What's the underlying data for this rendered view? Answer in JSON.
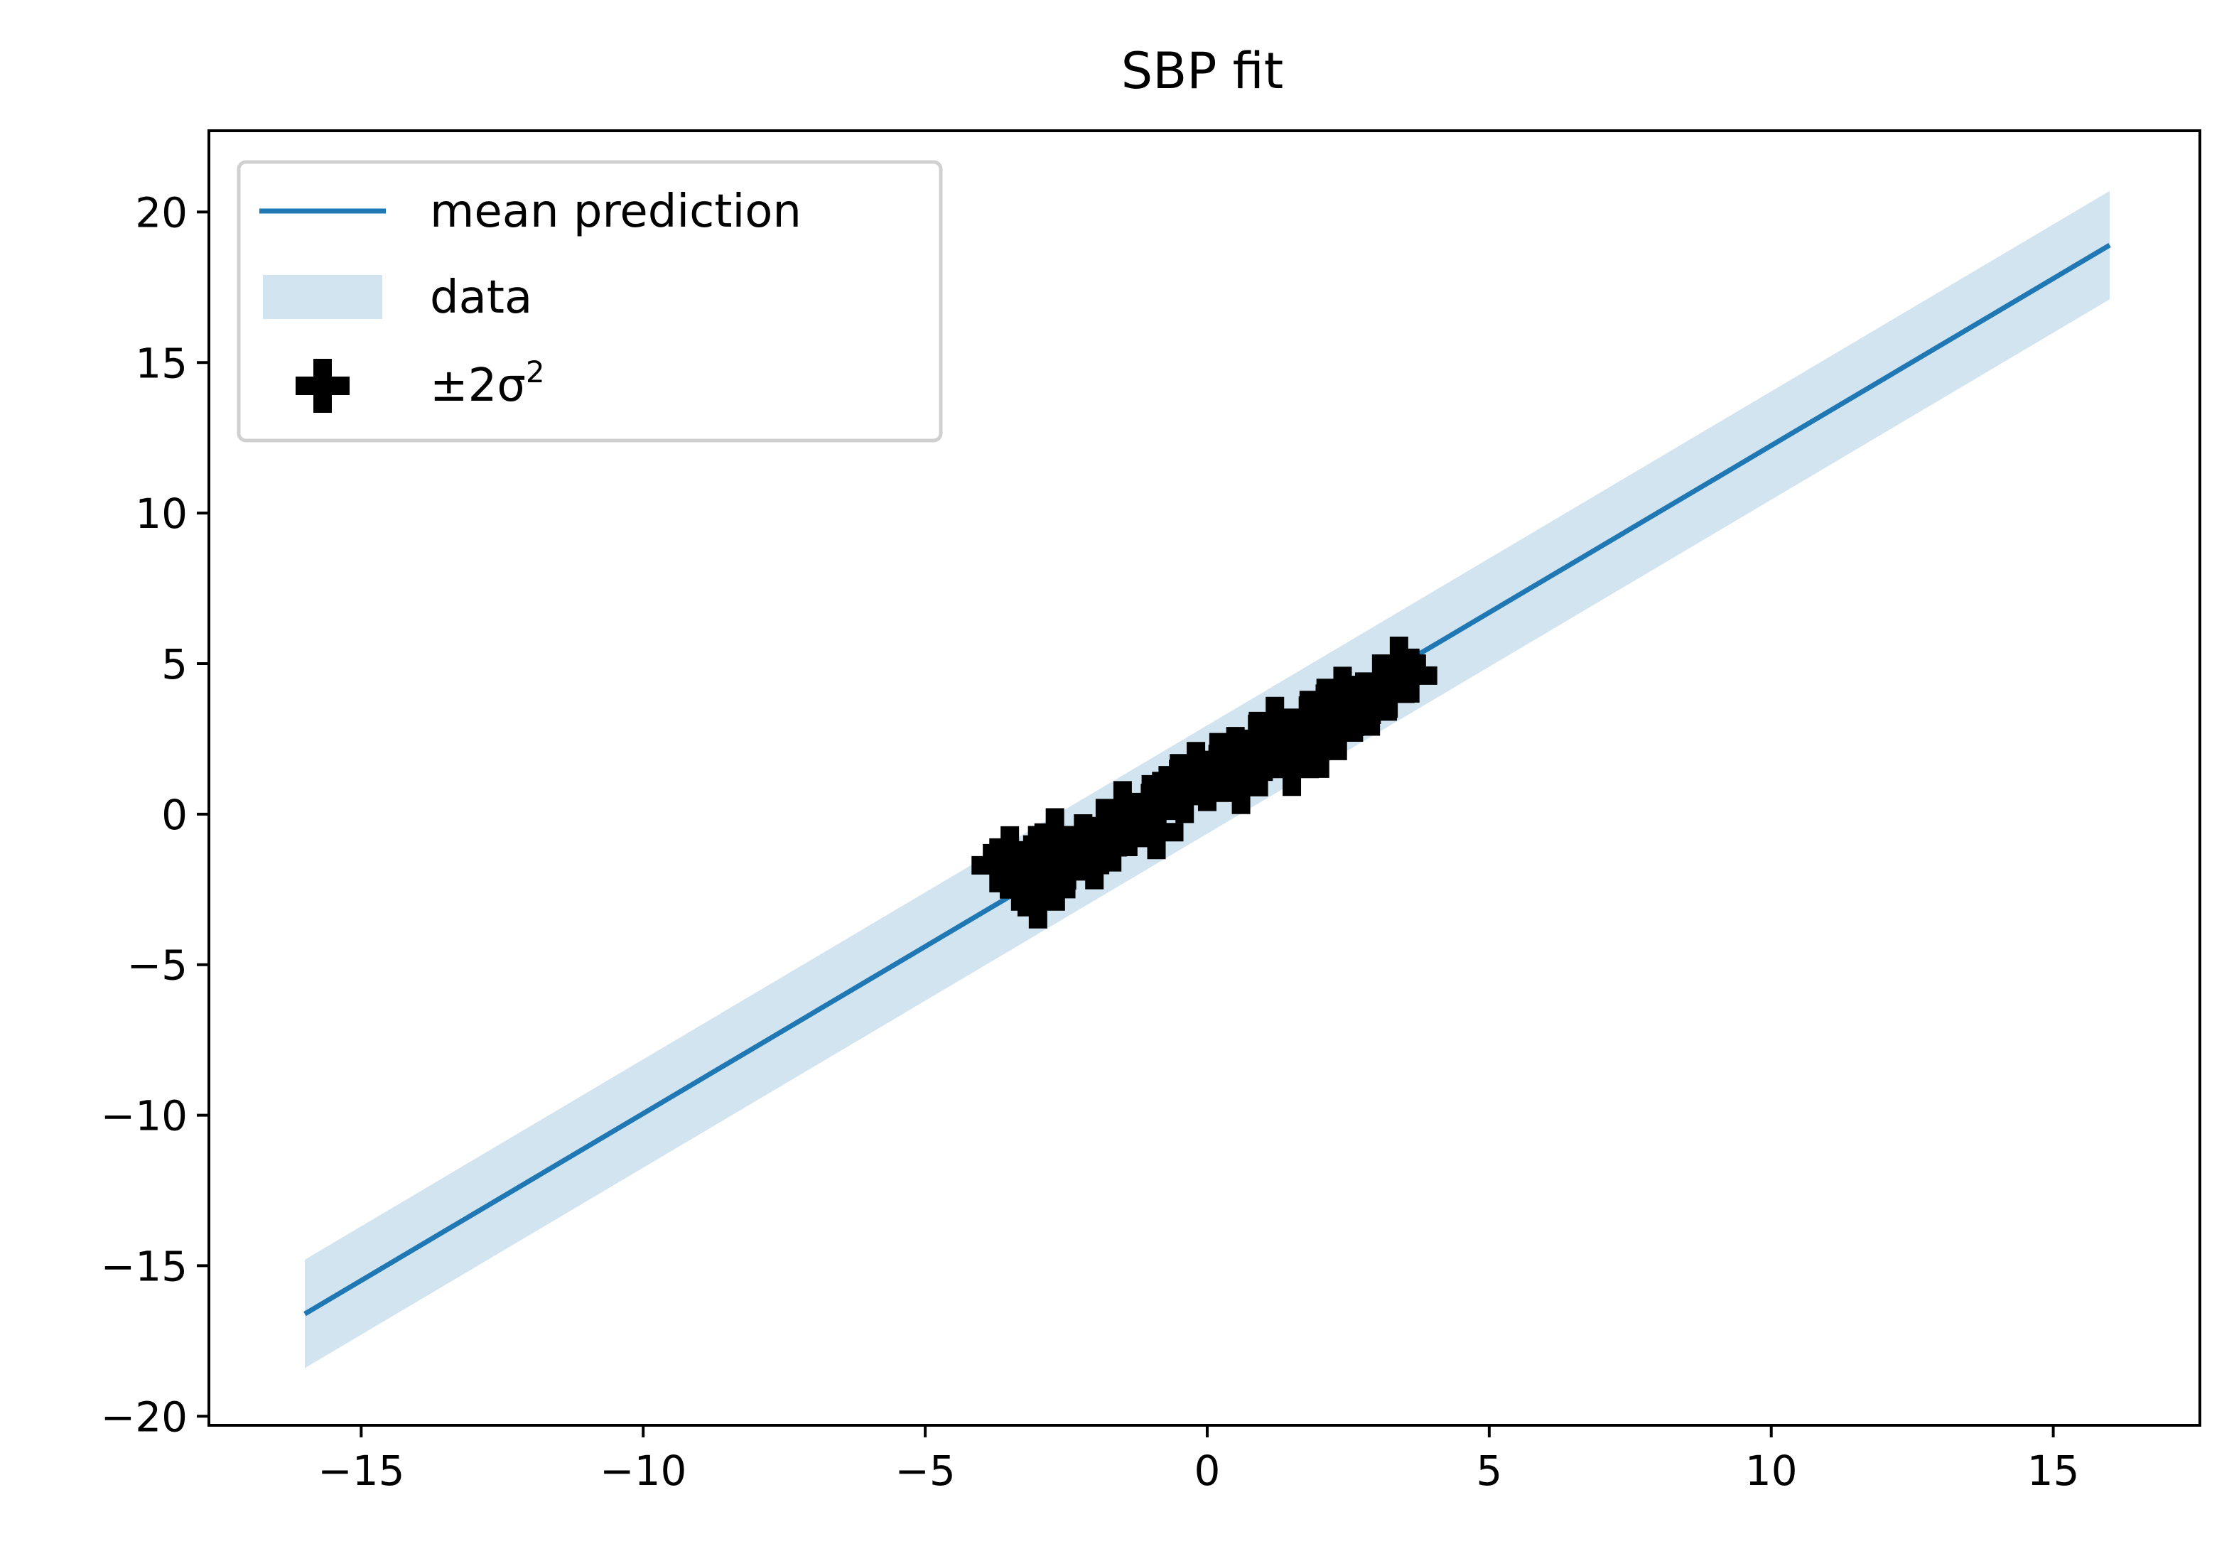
{
  "chart_data": {
    "type": "line",
    "title": "SBP fit",
    "xlabel": "",
    "ylabel": "",
    "xlim": [
      -17.7,
      17.6
    ],
    "ylim": [
      -20.3,
      22.7
    ],
    "x_ticks": [
      -15,
      -10,
      -5,
      0,
      5,
      10,
      15
    ],
    "y_ticks": [
      -20,
      -15,
      -10,
      -5,
      0,
      5,
      10,
      15,
      20
    ],
    "x_tick_labels": [
      "−15",
      "−10",
      "−5",
      "0",
      "5",
      "10",
      "15"
    ],
    "y_tick_labels": [
      "−20",
      "−15",
      "−10",
      "−5",
      "0",
      "5",
      "10",
      "15",
      "20"
    ],
    "grid": false,
    "legend_position": "top-left",
    "legend": {
      "line_label": "mean prediction",
      "band_label": "data",
      "points_label_base": "±2σ",
      "points_label_sup": "2"
    },
    "colors": {
      "line": "#1f77b4",
      "band": "#1f77b4",
      "points": "#000000"
    },
    "series": [
      {
        "kind": "line",
        "x": [
          -16.0,
          16.0
        ],
        "y": [
          -16.6,
          18.9
        ]
      },
      {
        "kind": "band",
        "x": [
          -16.0,
          16.0
        ],
        "y_upper": [
          -14.8,
          20.7
        ],
        "y_lower": [
          -18.4,
          17.1
        ]
      },
      {
        "kind": "scatter",
        "marker": "plus",
        "x": [
          -3.7,
          -3.5,
          -3.3,
          -3.2,
          -3.1,
          -3.0,
          -2.9,
          -2.8,
          -2.7,
          -2.6,
          -2.5,
          -2.3,
          -2.2,
          -2.0,
          -1.9,
          -1.7,
          -1.5,
          -1.4,
          -1.2,
          -1.0,
          -0.9,
          -0.7,
          -0.5,
          -0.4,
          -0.2,
          0.0,
          0.2,
          0.3,
          0.5,
          0.6,
          0.8,
          0.9,
          1.0,
          1.2,
          1.3,
          1.5,
          1.6,
          1.8,
          2.0,
          2.1,
          2.3,
          2.4,
          2.6,
          2.7,
          2.9,
          3.1,
          3.2,
          3.4,
          3.6
        ],
        "y": [
          -1.7,
          -1.3,
          -2.0,
          -2.5,
          -1.6,
          -2.9,
          -1.2,
          -2.2,
          -0.7,
          -1.5,
          -1.9,
          -1.3,
          -0.9,
          -1.6,
          -1.1,
          -0.4,
          0.2,
          -0.5,
          -0.2,
          0.4,
          -0.6,
          0.7,
          1.1,
          0.6,
          1.5,
          1.0,
          1.8,
          1.3,
          2.0,
          0.9,
          1.6,
          2.5,
          2.0,
          3.0,
          2.3,
          1.5,
          2.6,
          3.2,
          2.1,
          3.6,
          2.9,
          4.0,
          3.3,
          3.7,
          3.5,
          4.4,
          4.0,
          5.0,
          4.6
        ]
      }
    ]
  }
}
